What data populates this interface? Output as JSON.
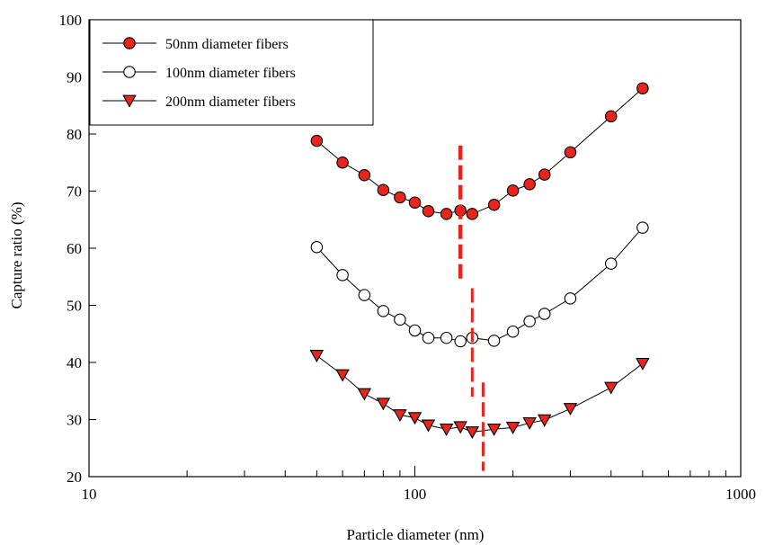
{
  "chart_data": {
    "type": "scatter",
    "xlabel": "Particle diameter (nm)",
    "ylabel": "Capture ratio (%)",
    "xscale": "log",
    "xlim": [
      10,
      1000
    ],
    "ylim": [
      20,
      100
    ],
    "xticks": [
      {
        "value": 10,
        "label": "10"
      },
      {
        "value": 100,
        "label": "100"
      },
      {
        "value": 1000,
        "label": "1000"
      }
    ],
    "yticks": [
      {
        "value": 20,
        "label": "20"
      },
      {
        "value": 30,
        "label": "30"
      },
      {
        "value": 40,
        "label": "40"
      },
      {
        "value": 50,
        "label": "50"
      },
      {
        "value": 60,
        "label": "60"
      },
      {
        "value": 70,
        "label": "70"
      },
      {
        "value": 80,
        "label": "80"
      },
      {
        "value": 90,
        "label": "90"
      },
      {
        "value": 100,
        "label": "100"
      }
    ],
    "grid": false,
    "legend_position": "top-left",
    "series": [
      {
        "name": "50nm diameter fibers",
        "marker": "circle-filled",
        "color": "#e8251c",
        "points": [
          [
            50,
            78.8
          ],
          [
            60,
            75.0
          ],
          [
            70,
            72.8
          ],
          [
            80,
            70.2
          ],
          [
            90,
            68.9
          ],
          [
            100,
            68.0
          ],
          [
            110,
            66.5
          ],
          [
            125,
            66.0
          ],
          [
            138,
            66.6
          ],
          [
            150,
            66.0
          ],
          [
            175,
            67.6
          ],
          [
            200,
            70.1
          ],
          [
            225,
            71.2
          ],
          [
            250,
            72.9
          ],
          [
            300,
            76.8
          ],
          [
            400,
            83.1
          ],
          [
            500,
            88.0
          ]
        ]
      },
      {
        "name": "100nm diameter fibers",
        "marker": "circle-open",
        "color": "#ffffff",
        "points": [
          [
            50,
            60.2
          ],
          [
            60,
            55.3
          ],
          [
            70,
            51.8
          ],
          [
            80,
            49.0
          ],
          [
            90,
            47.5
          ],
          [
            100,
            45.6
          ],
          [
            110,
            44.3
          ],
          [
            125,
            44.3
          ],
          [
            138,
            43.7
          ],
          [
            150,
            44.3
          ],
          [
            175,
            43.8
          ],
          [
            200,
            45.4
          ],
          [
            225,
            47.2
          ],
          [
            250,
            48.5
          ],
          [
            300,
            51.2
          ],
          [
            400,
            57.3
          ],
          [
            500,
            63.6
          ]
        ]
      },
      {
        "name": "200nm diameter fibers",
        "marker": "triangle-down-filled",
        "color": "#e8251c",
        "points": [
          [
            50,
            41.2
          ],
          [
            60,
            37.8
          ],
          [
            70,
            34.5
          ],
          [
            80,
            32.8
          ],
          [
            90,
            30.8
          ],
          [
            100,
            30.3
          ],
          [
            110,
            29.0
          ],
          [
            125,
            28.3
          ],
          [
            138,
            28.7
          ],
          [
            150,
            27.8
          ],
          [
            175,
            28.3
          ],
          [
            200,
            28.6
          ],
          [
            225,
            29.4
          ],
          [
            250,
            29.9
          ],
          [
            300,
            31.9
          ],
          [
            400,
            35.6
          ],
          [
            500,
            39.8
          ]
        ]
      }
    ],
    "minimum_markers": [
      {
        "x": 138,
        "y_range": [
          54.5,
          78.0
        ],
        "color": "#e8251c",
        "style": "dashed"
      },
      {
        "x": 150,
        "y_range": [
          34.0,
          53.0
        ],
        "color": "#e8251c",
        "style": "dashed"
      },
      {
        "x": 162,
        "y_range": [
          21.0,
          36.5
        ],
        "color": "#e8251c",
        "style": "dashed"
      }
    ]
  }
}
